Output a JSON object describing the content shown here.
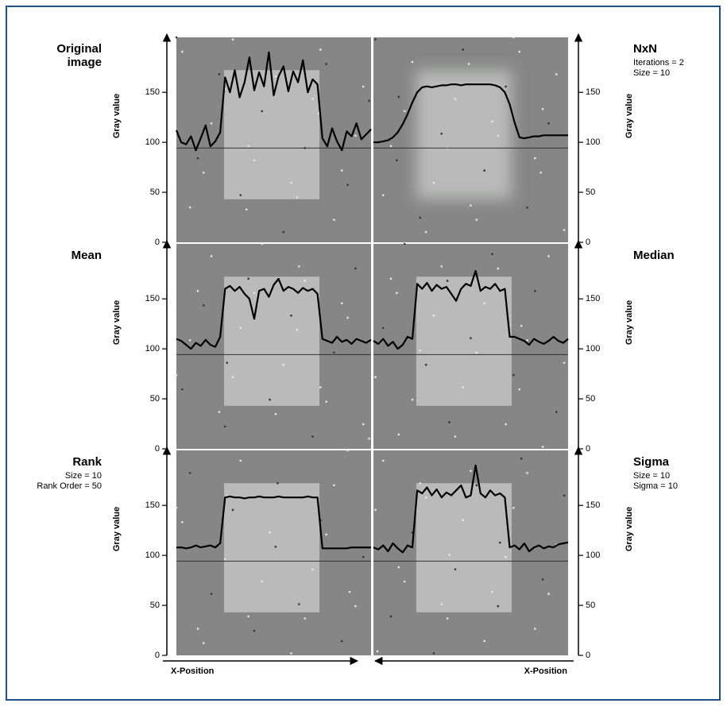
{
  "chart_data": [
    {
      "type": "line",
      "title": "Original image",
      "notes": [],
      "ylabel": "Gray value",
      "color": "#000000",
      "ylim": [
        0,
        205
      ],
      "yticks": [
        0,
        50,
        100,
        150
      ],
      "values": [
        112,
        100,
        98,
        106,
        92,
        104,
        117,
        96,
        101,
        110,
        165,
        150,
        172,
        145,
        160,
        185,
        152,
        170,
        156,
        190,
        147,
        166,
        176,
        151,
        171,
        160,
        182,
        150,
        163,
        158,
        104,
        96,
        114,
        101,
        92,
        111,
        106,
        119,
        103,
        108,
        113
      ]
    },
    {
      "type": "line",
      "title": "NxN",
      "notes": [
        "Iterations = 2",
        "Size = 10"
      ],
      "ylabel": "Gray value",
      "color": "#000000",
      "ylim": [
        0,
        205
      ],
      "yticks": [
        0,
        50,
        100,
        150
      ],
      "values": [
        100,
        100,
        101,
        102,
        105,
        110,
        118,
        128,
        140,
        150,
        155,
        156,
        155,
        156,
        157,
        157,
        158,
        158,
        157,
        158,
        158,
        158,
        158,
        158,
        158,
        157,
        155,
        150,
        138,
        120,
        105,
        104,
        105,
        106,
        106,
        107,
        107,
        107,
        107,
        107,
        107
      ]
    },
    {
      "type": "line",
      "title": "Mean",
      "notes": [],
      "ylabel": "Gray value",
      "color": "#000000",
      "ylim": [
        0,
        205
      ],
      "yticks": [
        0,
        50,
        100,
        150
      ],
      "values": [
        110,
        108,
        104,
        100,
        106,
        103,
        109,
        104,
        102,
        112,
        160,
        163,
        158,
        162,
        155,
        150,
        130,
        158,
        160,
        152,
        164,
        170,
        158,
        162,
        160,
        156,
        161,
        158,
        160,
        155,
        110,
        108,
        106,
        112,
        107,
        109,
        105,
        110,
        108,
        106,
        109
      ]
    },
    {
      "type": "line",
      "title": "Median",
      "notes": [],
      "ylabel": "Gray value",
      "color": "#000000",
      "ylim": [
        0,
        205
      ],
      "yticks": [
        0,
        50,
        100,
        150
      ],
      "values": [
        108,
        105,
        110,
        103,
        107,
        100,
        104,
        112,
        110,
        165,
        160,
        166,
        158,
        164,
        160,
        162,
        155,
        148,
        160,
        165,
        163,
        178,
        158,
        162,
        160,
        165,
        158,
        160,
        112,
        112,
        110,
        108,
        104,
        110,
        107,
        105,
        108,
        112,
        108,
        106,
        110
      ]
    },
    {
      "type": "line",
      "title": "Rank",
      "notes": [
        "Size = 10",
        "Rank Order = 50"
      ],
      "ylabel": "Gray value",
      "xlabel": "X-Position",
      "color": "#000000",
      "ylim": [
        0,
        205
      ],
      "yticks": [
        0,
        50,
        100,
        150
      ],
      "values": [
        108,
        108,
        107,
        108,
        110,
        108,
        109,
        110,
        108,
        112,
        158,
        159,
        158,
        158,
        157,
        158,
        158,
        159,
        158,
        158,
        158,
        159,
        158,
        158,
        158,
        158,
        158,
        159,
        158,
        158,
        107,
        107,
        107,
        107,
        107,
        107,
        108,
        108,
        108,
        108,
        108
      ]
    },
    {
      "type": "line",
      "title": "Sigma",
      "notes": [
        "Size = 10",
        "Sigma = 10"
      ],
      "ylabel": "Gray value",
      "xlabel": "X-Position",
      "color": "#000000",
      "ylim": [
        0,
        205
      ],
      "yticks": [
        0,
        50,
        100,
        150
      ],
      "values": [
        108,
        106,
        110,
        104,
        112,
        107,
        103,
        110,
        108,
        165,
        162,
        168,
        160,
        166,
        158,
        163,
        160,
        165,
        170,
        158,
        160,
        190,
        162,
        158,
        165,
        160,
        162,
        158,
        108,
        110,
        106,
        112,
        104,
        108,
        110,
        107,
        109,
        108,
        111,
        112,
        113
      ]
    }
  ]
}
